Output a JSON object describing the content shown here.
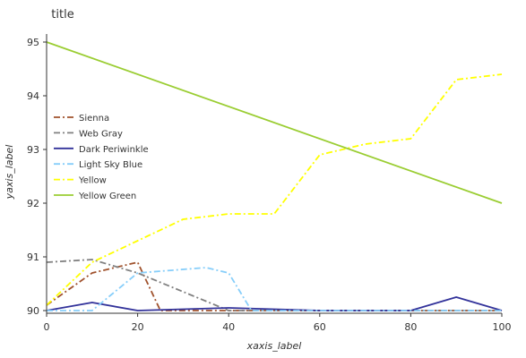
{
  "chart_data": {
    "type": "line",
    "title": "title",
    "xlabel": "xaxis_label",
    "ylabel": "yaxis_label",
    "xlim": [
      0,
      100
    ],
    "ylim": [
      89.95,
      95.15
    ],
    "x_ticks": [
      0,
      20,
      40,
      60,
      80,
      100
    ],
    "y_ticks": [
      90,
      91,
      92,
      93,
      94,
      95
    ],
    "grid": false,
    "legend_position": "left",
    "series": [
      {
        "name": "Sienna",
        "color": "#a0522d",
        "dash": "dashdot",
        "x": [
          0,
          10,
          20,
          25,
          30,
          100
        ],
        "y": [
          90.1,
          90.7,
          90.9,
          90.0,
          90.0,
          90.0
        ]
      },
      {
        "name": "Web Gray",
        "color": "#808080",
        "dash": "dashdot",
        "x": [
          0,
          10,
          20,
          40,
          100
        ],
        "y": [
          90.9,
          90.95,
          90.7,
          90.0,
          90.0
        ]
      },
      {
        "name": "Dark Periwinkle",
        "color": "#32329a",
        "dash": "solid",
        "x": [
          0,
          10,
          20,
          40,
          60,
          80,
          90,
          100
        ],
        "y": [
          90.0,
          90.15,
          90.0,
          90.05,
          90.0,
          90.0,
          90.25,
          90.0
        ]
      },
      {
        "name": "Light Sky Blue",
        "color": "#87cefa",
        "dash": "dashdot",
        "x": [
          0,
          10,
          20,
          35,
          40,
          45,
          100
        ],
        "y": [
          90.0,
          90.0,
          90.7,
          90.8,
          90.7,
          90.0,
          90.0
        ]
      },
      {
        "name": "Yellow",
        "color": "#ffff00",
        "dash": "dashdot",
        "x": [
          0,
          10,
          20,
          30,
          40,
          50,
          60,
          70,
          80,
          90,
          100
        ],
        "y": [
          90.1,
          90.9,
          91.3,
          91.7,
          91.8,
          91.8,
          92.9,
          93.1,
          93.2,
          94.3,
          94.4
        ]
      },
      {
        "name": "Yellow Green",
        "color": "#9acd32",
        "dash": "solid",
        "x": [
          0,
          100
        ],
        "y": [
          95.0,
          92.0
        ]
      }
    ]
  }
}
